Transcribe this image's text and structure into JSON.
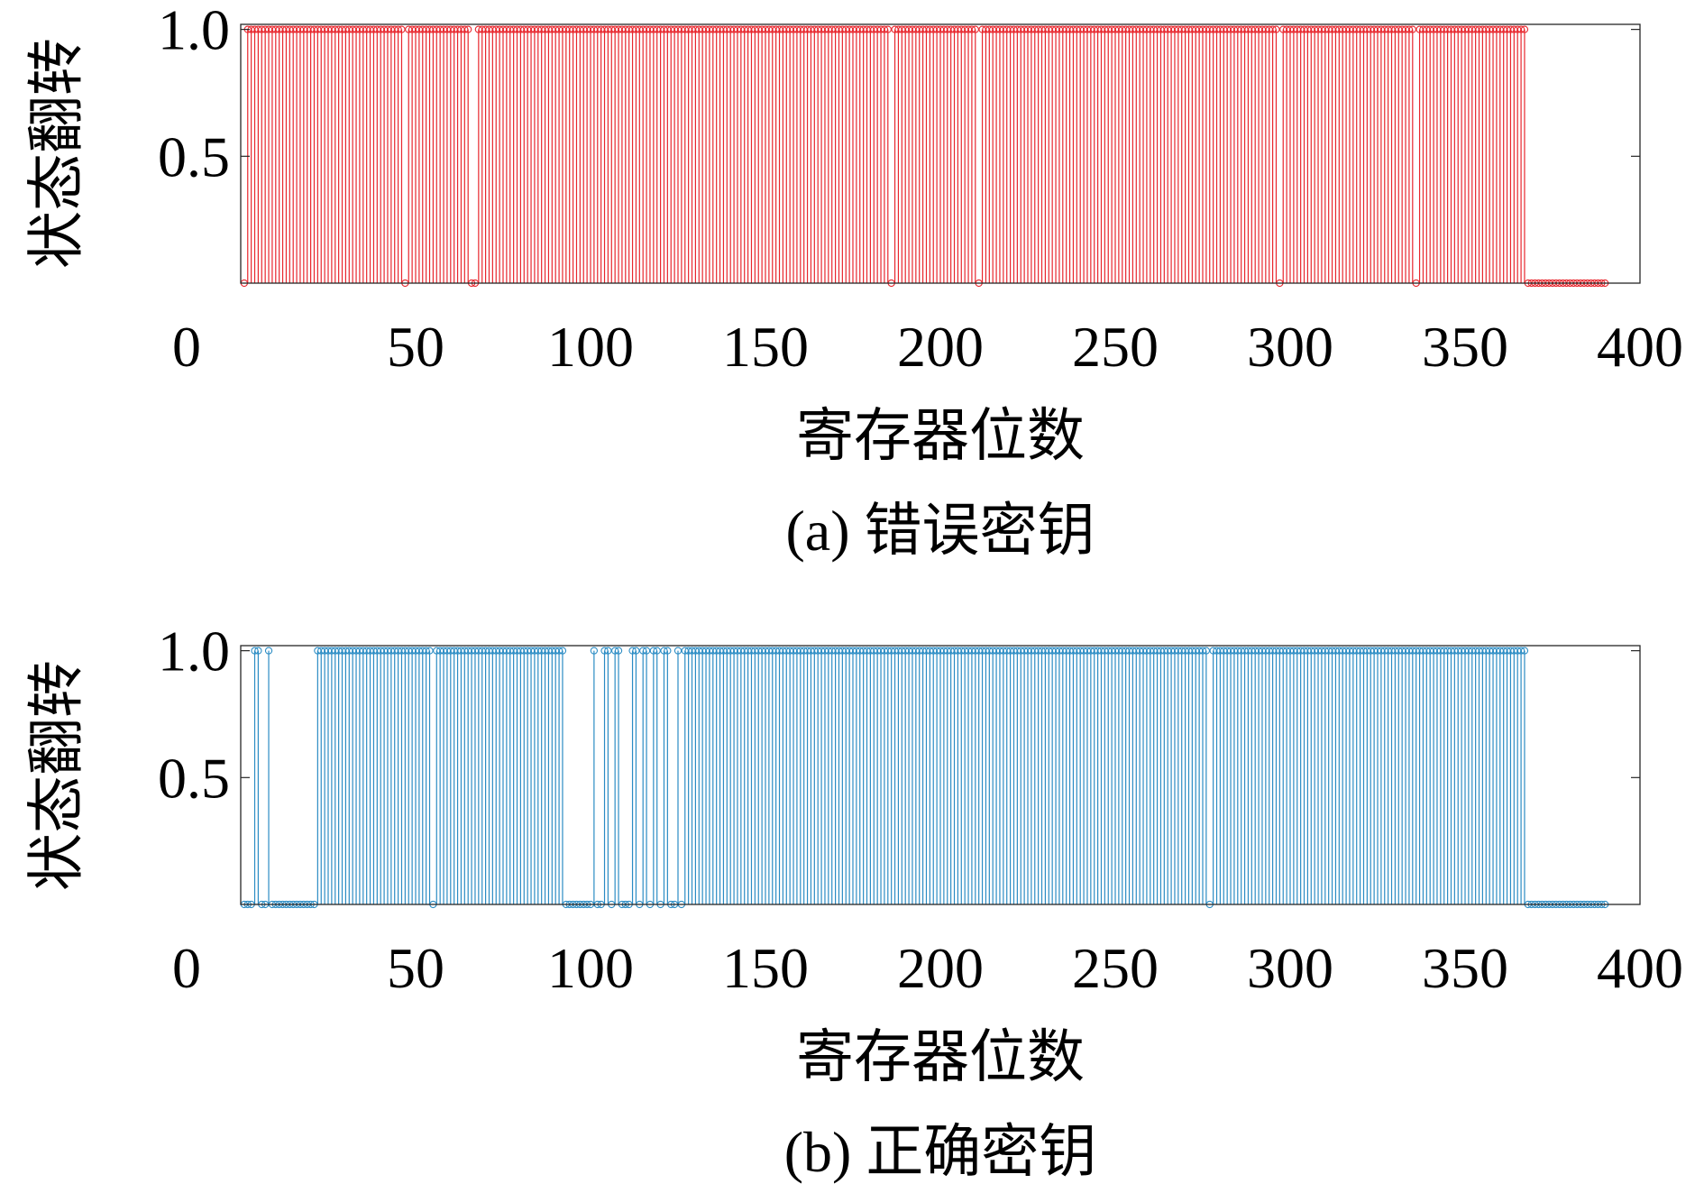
{
  "chart_data": [
    {
      "type": "bar",
      "xlabel": "寄存器位数",
      "ylabel": "状态翻转",
      "caption": "(a) 错误密钥",
      "xlim": [
        0,
        400
      ],
      "ylim": [
        0,
        1.02
      ],
      "xticks": [
        0,
        50,
        100,
        150,
        200,
        250,
        300,
        350,
        400
      ],
      "xtick_labels": [
        "0",
        "50",
        "100",
        "150",
        "200",
        "250",
        "300",
        "350",
        "400"
      ],
      "yticks": [
        0.5,
        1.0
      ],
      "ytick_labels": [
        "0.5",
        "1.0"
      ],
      "grid": false,
      "color": "#e8262d",
      "x": [
        1,
        2,
        3,
        4,
        5,
        6,
        7,
        8,
        9,
        10,
        11,
        12,
        13,
        14,
        15,
        16,
        17,
        18,
        19,
        20,
        21,
        22,
        23,
        24,
        25,
        26,
        27,
        28,
        29,
        30,
        31,
        32,
        33,
        34,
        35,
        36,
        37,
        38,
        39,
        40,
        41,
        42,
        43,
        44,
        45,
        46,
        47,
        48,
        49,
        50,
        51,
        52,
        53,
        54,
        55,
        56,
        57,
        58,
        59,
        60,
        61,
        62,
        63,
        64,
        65,
        66,
        67,
        68,
        69,
        70,
        71,
        72,
        73,
        74,
        75,
        76,
        77,
        78,
        79,
        80,
        81,
        82,
        83,
        84,
        85,
        86,
        87,
        88,
        89,
        90,
        91,
        92,
        93,
        94,
        95,
        96,
        97,
        98,
        99,
        100,
        101,
        102,
        103,
        104,
        105,
        106,
        107,
        108,
        109,
        110,
        111,
        112,
        113,
        114,
        115,
        116,
        117,
        118,
        119,
        120,
        121,
        122,
        123,
        124,
        125,
        126,
        127,
        128,
        129,
        130,
        131,
        132,
        133,
        134,
        135,
        136,
        137,
        138,
        139,
        140,
        141,
        142,
        143,
        144,
        145,
        146,
        147,
        148,
        149,
        150,
        151,
        152,
        153,
        154,
        155,
        156,
        157,
        158,
        159,
        160,
        161,
        162,
        163,
        164,
        165,
        166,
        167,
        168,
        169,
        170,
        171,
        172,
        173,
        174,
        175,
        176,
        177,
        178,
        179,
        180,
        181,
        182,
        183,
        184,
        185,
        186,
        187,
        188,
        189,
        190,
        191,
        192,
        193,
        194,
        195,
        196,
        197,
        198,
        199,
        200,
        201,
        202,
        203,
        204,
        205,
        206,
        207,
        208,
        209,
        210,
        211,
        212,
        213,
        214,
        215,
        216,
        217,
        218,
        219,
        220,
        221,
        222,
        223,
        224,
        225,
        226,
        227,
        228,
        229,
        230,
        231,
        232,
        233,
        234,
        235,
        236,
        237,
        238,
        239,
        240,
        241,
        242,
        243,
        244,
        245,
        246,
        247,
        248,
        249,
        250,
        251,
        252,
        253,
        254,
        255,
        256,
        257,
        258,
        259,
        260,
        261,
        262,
        263,
        264,
        265,
        266,
        267,
        268,
        269,
        270,
        271,
        272,
        273,
        274,
        275,
        276,
        277,
        278,
        279,
        280,
        281,
        282,
        283,
        284,
        285,
        286,
        287,
        288,
        289,
        290,
        291,
        292,
        293,
        294,
        295,
        296,
        297,
        298,
        299,
        300,
        301,
        302,
        303,
        304,
        305,
        306,
        307,
        308,
        309,
        310,
        311,
        312,
        313,
        314,
        315,
        316,
        317,
        318,
        319,
        320,
        321,
        322,
        323,
        324,
        325,
        326,
        327,
        328,
        329,
        330,
        331,
        332,
        333,
        334,
        335,
        336,
        337,
        338,
        339,
        340,
        341,
        342,
        343,
        344,
        345,
        346,
        347,
        348,
        349,
        350,
        351,
        352,
        353,
        354,
        355,
        356,
        357,
        358,
        359,
        360,
        361,
        362,
        363,
        364,
        365,
        366,
        367,
        368,
        369,
        370,
        371,
        372,
        373,
        374,
        375,
        376,
        377,
        378,
        379,
        380,
        381,
        382,
        383,
        384,
        385,
        386,
        387,
        388,
        389,
        390
      ],
      "y": [
        0,
        1,
        1,
        1,
        1,
        1,
        1,
        1,
        1,
        1,
        1,
        1,
        1,
        1,
        1,
        1,
        1,
        1,
        1,
        1,
        1,
        1,
        1,
        1,
        1,
        1,
        1,
        1,
        1,
        1,
        1,
        1,
        1,
        1,
        1,
        1,
        1,
        1,
        1,
        1,
        1,
        1,
        1,
        1,
        1,
        1,
        0,
        1,
        1,
        1,
        1,
        1,
        1,
        1,
        1,
        1,
        1,
        1,
        1,
        1,
        1,
        1,
        1,
        1,
        1,
        0,
        0,
        1,
        1,
        1,
        1,
        1,
        1,
        1,
        1,
        1,
        1,
        1,
        1,
        1,
        1,
        1,
        1,
        1,
        1,
        1,
        1,
        1,
        1,
        1,
        1,
        1,
        1,
        1,
        1,
        1,
        1,
        1,
        1,
        1,
        1,
        1,
        1,
        1,
        1,
        1,
        1,
        1,
        1,
        1,
        1,
        1,
        1,
        1,
        1,
        1,
        1,
        1,
        1,
        1,
        1,
        1,
        1,
        1,
        1,
        1,
        1,
        1,
        1,
        1,
        1,
        1,
        1,
        1,
        1,
        1,
        1,
        1,
        1,
        1,
        1,
        1,
        1,
        1,
        1,
        1,
        1,
        1,
        1,
        1,
        1,
        1,
        1,
        1,
        1,
        1,
        1,
        1,
        1,
        1,
        1,
        1,
        1,
        1,
        1,
        1,
        1,
        1,
        1,
        1,
        1,
        1,
        1,
        1,
        1,
        1,
        1,
        1,
        1,
        1,
        1,
        1,
        1,
        1,
        1,
        0,
        1,
        1,
        1,
        1,
        1,
        1,
        1,
        1,
        1,
        1,
        1,
        1,
        1,
        1,
        1,
        1,
        1,
        1,
        1,
        1,
        1,
        1,
        1,
        1,
        0,
        1,
        1,
        1,
        1,
        1,
        1,
        1,
        1,
        1,
        1,
        1,
        1,
        1,
        1,
        1,
        1,
        1,
        1,
        1,
        1,
        1,
        1,
        1,
        1,
        1,
        1,
        1,
        1,
        1,
        1,
        1,
        1,
        1,
        1,
        1,
        1,
        1,
        1,
        1,
        1,
        1,
        1,
        1,
        1,
        1,
        1,
        1,
        1,
        1,
        1,
        1,
        1,
        1,
        1,
        1,
        1,
        1,
        1,
        1,
        1,
        1,
        1,
        1,
        1,
        1,
        1,
        1,
        1,
        1,
        1,
        1,
        1,
        1,
        1,
        1,
        1,
        1,
        1,
        1,
        1,
        1,
        1,
        1,
        1,
        1,
        0,
        1,
        1,
        1,
        1,
        1,
        1,
        1,
        1,
        1,
        1,
        1,
        1,
        1,
        1,
        1,
        1,
        1,
        1,
        1,
        1,
        1,
        1,
        1,
        1,
        1,
        1,
        1,
        1,
        1,
        1,
        1,
        1,
        1,
        1,
        1,
        1,
        1,
        1,
        0,
        1,
        1,
        1,
        1,
        1,
        1,
        1,
        1,
        1,
        1,
        1,
        1,
        1,
        1,
        1,
        1,
        1,
        1,
        1,
        1,
        1,
        1,
        1,
        1,
        1,
        1,
        1,
        1,
        1,
        1,
        1,
        0,
        0,
        0,
        0,
        0,
        0,
        0,
        0,
        0,
        0,
        0,
        0,
        0,
        0,
        0,
        0,
        0,
        0,
        0,
        0,
        0,
        0,
        0
      ]
    },
    {
      "type": "bar",
      "xlabel": "寄存器位数",
      "ylabel": "状态翻转",
      "caption": "(b) 正确密钥",
      "xlim": [
        0,
        400
      ],
      "ylim": [
        0,
        1.02
      ],
      "xticks": [
        0,
        50,
        100,
        150,
        200,
        250,
        300,
        350,
        400
      ],
      "xtick_labels": [
        "0",
        "50",
        "100",
        "150",
        "200",
        "250",
        "300",
        "350",
        "400"
      ],
      "yticks": [
        0.5,
        1.0
      ],
      "ytick_labels": [
        "0.5",
        "1.0"
      ],
      "grid": false,
      "color": "#2b8cc4",
      "x": [
        1,
        2,
        3,
        4,
        5,
        6,
        7,
        8,
        9,
        10,
        11,
        12,
        13,
        14,
        15,
        16,
        17,
        18,
        19,
        20,
        21,
        22,
        23,
        24,
        25,
        26,
        27,
        28,
        29,
        30,
        31,
        32,
        33,
        34,
        35,
        36,
        37,
        38,
        39,
        40,
        41,
        42,
        43,
        44,
        45,
        46,
        47,
        48,
        49,
        50,
        51,
        52,
        53,
        54,
        55,
        56,
        57,
        58,
        59,
        60,
        61,
        62,
        63,
        64,
        65,
        66,
        67,
        68,
        69,
        70,
        71,
        72,
        73,
        74,
        75,
        76,
        77,
        78,
        79,
        80,
        81,
        82,
        83,
        84,
        85,
        86,
        87,
        88,
        89,
        90,
        91,
        92,
        93,
        94,
        95,
        96,
        97,
        98,
        99,
        100,
        101,
        102,
        103,
        104,
        105,
        106,
        107,
        108,
        109,
        110,
        111,
        112,
        113,
        114,
        115,
        116,
        117,
        118,
        119,
        120,
        121,
        122,
        123,
        124,
        125,
        126,
        127,
        128,
        129,
        130,
        131,
        132,
        133,
        134,
        135,
        136,
        137,
        138,
        139,
        140,
        141,
        142,
        143,
        144,
        145,
        146,
        147,
        148,
        149,
        150,
        151,
        152,
        153,
        154,
        155,
        156,
        157,
        158,
        159,
        160,
        161,
        162,
        163,
        164,
        165,
        166,
        167,
        168,
        169,
        170,
        171,
        172,
        173,
        174,
        175,
        176,
        177,
        178,
        179,
        180,
        181,
        182,
        183,
        184,
        185,
        186,
        187,
        188,
        189,
        190,
        191,
        192,
        193,
        194,
        195,
        196,
        197,
        198,
        199,
        200,
        201,
        202,
        203,
        204,
        205,
        206,
        207,
        208,
        209,
        210,
        211,
        212,
        213,
        214,
        215,
        216,
        217,
        218,
        219,
        220,
        221,
        222,
        223,
        224,
        225,
        226,
        227,
        228,
        229,
        230,
        231,
        232,
        233,
        234,
        235,
        236,
        237,
        238,
        239,
        240,
        241,
        242,
        243,
        244,
        245,
        246,
        247,
        248,
        249,
        250,
        251,
        252,
        253,
        254,
        255,
        256,
        257,
        258,
        259,
        260,
        261,
        262,
        263,
        264,
        265,
        266,
        267,
        268,
        269,
        270,
        271,
        272,
        273,
        274,
        275,
        276,
        277,
        278,
        279,
        280,
        281,
        282,
        283,
        284,
        285,
        286,
        287,
        288,
        289,
        290,
        291,
        292,
        293,
        294,
        295,
        296,
        297,
        298,
        299,
        300,
        301,
        302,
        303,
        304,
        305,
        306,
        307,
        308,
        309,
        310,
        311,
        312,
        313,
        314,
        315,
        316,
        317,
        318,
        319,
        320,
        321,
        322,
        323,
        324,
        325,
        326,
        327,
        328,
        329,
        330,
        331,
        332,
        333,
        334,
        335,
        336,
        337,
        338,
        339,
        340,
        341,
        342,
        343,
        344,
        345,
        346,
        347,
        348,
        349,
        350,
        351,
        352,
        353,
        354,
        355,
        356,
        357,
        358,
        359,
        360,
        361,
        362,
        363,
        364,
        365,
        366,
        367,
        368,
        369,
        370,
        371,
        372,
        373,
        374,
        375,
        376,
        377,
        378,
        379,
        380,
        381,
        382,
        383,
        384,
        385,
        386,
        387,
        388,
        389,
        390
      ],
      "y": [
        0,
        0,
        0,
        1,
        1,
        0,
        0,
        1,
        0,
        0,
        0,
        0,
        0,
        0,
        0,
        0,
        0,
        0,
        0,
        0,
        0,
        1,
        1,
        1,
        1,
        1,
        1,
        1,
        1,
        1,
        1,
        1,
        1,
        1,
        1,
        1,
        1,
        1,
        1,
        1,
        1,
        1,
        1,
        1,
        1,
        1,
        1,
        1,
        1,
        1,
        1,
        1,
        1,
        1,
        0,
        1,
        1,
        1,
        1,
        1,
        1,
        1,
        1,
        1,
        1,
        1,
        1,
        1,
        1,
        1,
        1,
        1,
        1,
        1,
        1,
        1,
        1,
        1,
        1,
        1,
        1,
        1,
        1,
        1,
        1,
        1,
        1,
        1,
        1,
        1,
        1,
        1,
        0,
        0,
        0,
        0,
        0,
        0,
        0,
        0,
        1,
        0,
        0,
        1,
        1,
        0,
        1,
        1,
        0,
        0,
        0,
        1,
        1,
        0,
        1,
        1,
        0,
        1,
        1,
        0,
        1,
        1,
        0,
        0,
        1,
        0,
        1,
        1,
        1,
        1,
        1,
        1,
        1,
        1,
        1,
        1,
        1,
        1,
        1,
        1,
        1,
        1,
        1,
        1,
        1,
        1,
        1,
        1,
        1,
        1,
        1,
        1,
        1,
        1,
        1,
        1,
        1,
        1,
        1,
        1,
        1,
        1,
        1,
        1,
        1,
        1,
        1,
        1,
        1,
        1,
        1,
        1,
        1,
        1,
        1,
        1,
        1,
        1,
        1,
        1,
        1,
        1,
        1,
        1,
        1,
        1,
        1,
        1,
        1,
        1,
        1,
        1,
        1,
        1,
        1,
        1,
        1,
        1,
        1,
        1,
        1,
        1,
        1,
        1,
        1,
        1,
        1,
        1,
        1,
        1,
        1,
        1,
        1,
        1,
        1,
        1,
        1,
        1,
        1,
        1,
        1,
        1,
        1,
        1,
        1,
        1,
        1,
        1,
        1,
        1,
        1,
        1,
        1,
        1,
        1,
        1,
        1,
        1,
        1,
        1,
        1,
        1,
        1,
        1,
        1,
        1,
        1,
        1,
        1,
        1,
        1,
        1,
        1,
        1,
        1,
        1,
        1,
        1,
        1,
        1,
        1,
        1,
        1,
        1,
        1,
        1,
        1,
        1,
        1,
        1,
        1,
        1,
        1,
        1,
        1,
        1,
        0,
        1,
        1,
        1,
        1,
        1,
        1,
        1,
        1,
        1,
        1,
        1,
        1,
        1,
        1,
        1,
        1,
        1,
        1,
        1,
        1,
        1,
        1,
        1,
        1,
        1,
        1,
        1,
        1,
        1,
        1,
        1,
        1,
        1,
        1,
        1,
        1,
        1,
        1,
        1,
        1,
        1,
        1,
        1,
        1,
        1,
        1,
        1,
        1,
        1,
        1,
        1,
        1,
        1,
        1,
        1,
        1,
        1,
        1,
        1,
        1,
        1,
        1,
        1,
        1,
        1,
        1,
        1,
        1,
        1,
        1,
        1,
        1,
        1,
        1,
        1,
        1,
        1,
        1,
        1,
        1,
        1,
        1,
        1,
        1,
        1,
        1,
        1,
        1,
        1,
        1,
        0,
        0,
        0,
        0,
        0,
        0,
        0,
        0,
        0,
        0,
        0,
        0,
        0,
        0,
        0,
        0,
        0,
        0,
        0,
        0,
        0,
        0,
        0
      ]
    }
  ]
}
